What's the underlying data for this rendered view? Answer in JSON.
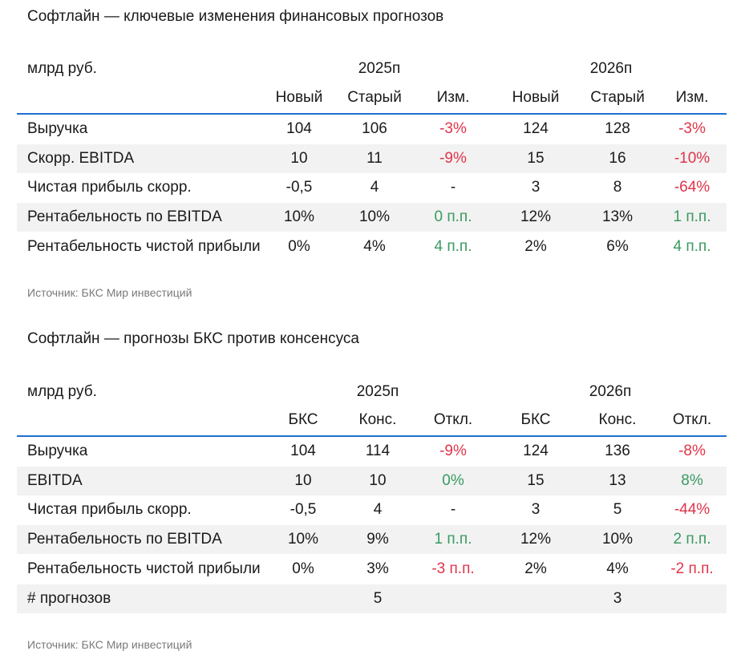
{
  "table1": {
    "title": "Софтлайн — ключевые изменения финансовых прогнозов",
    "unit": "млрд руб.",
    "years": [
      "2025п",
      "2026п"
    ],
    "headers": [
      "Новый",
      "Старый",
      "Изм.",
      "Новый",
      "Старый",
      "Изм."
    ],
    "rows": [
      {
        "label": "Выручка",
        "v": [
          "104",
          "106",
          "-3%",
          "124",
          "128",
          "-3%"
        ],
        "c": [
          "neu",
          "neu",
          "neg",
          "neu",
          "neu",
          "neg"
        ]
      },
      {
        "label": "Скорр. EBITDA",
        "v": [
          "10",
          "11",
          "-9%",
          "15",
          "16",
          "-10%"
        ],
        "c": [
          "neu",
          "neu",
          "neg",
          "neu",
          "neu",
          "neg"
        ]
      },
      {
        "label": "Чистая прибыль скорр.",
        "v": [
          "-0,5",
          "4",
          "-",
          "3",
          "8",
          "-64%"
        ],
        "c": [
          "neu",
          "neu",
          "neu",
          "neu",
          "neu",
          "neg"
        ]
      },
      {
        "label": "Рентабельность по EBITDA",
        "v": [
          "10%",
          "10%",
          "0 п.п.",
          "12%",
          "13%",
          "1 п.п."
        ],
        "c": [
          "neu",
          "neu",
          "pos",
          "neu",
          "neu",
          "pos"
        ]
      },
      {
        "label": "Рентабельность чистой прибыли",
        "v": [
          "0%",
          "4%",
          "4 п.п.",
          "2%",
          "6%",
          "4 п.п."
        ],
        "c": [
          "neu",
          "neu",
          "pos",
          "neu",
          "neu",
          "pos"
        ]
      }
    ],
    "source": "Источник: БКС Мир инвестиций"
  },
  "table2": {
    "title": "Софтлайн — прогнозы БКС против консенсуса",
    "unit": "млрд руб.",
    "years": [
      "2025п",
      "2026п"
    ],
    "headers": [
      "БКС",
      "Конс.",
      "Откл.",
      "БКС",
      "Конс.",
      "Откл."
    ],
    "rows": [
      {
        "label": "Выручка",
        "v": [
          "104",
          "114",
          "-9%",
          "124",
          "136",
          "-8%"
        ],
        "c": [
          "neu",
          "neu",
          "neg",
          "neu",
          "neu",
          "neg"
        ]
      },
      {
        "label": "EBITDA",
        "v": [
          "10",
          "10",
          "0%",
          "15",
          "13",
          "8%"
        ],
        "c": [
          "neu",
          "neu",
          "pos",
          "neu",
          "neu",
          "pos"
        ]
      },
      {
        "label": "Чистая прибыль скорр.",
        "v": [
          "-0,5",
          "4",
          "-",
          "3",
          "5",
          "-44%"
        ],
        "c": [
          "neu",
          "neu",
          "neu",
          "neu",
          "neu",
          "neg"
        ]
      },
      {
        "label": "Рентабельность по EBITDA",
        "v": [
          "10%",
          "9%",
          "1 п.п.",
          "12%",
          "10%",
          "2 п.п."
        ],
        "c": [
          "neu",
          "neu",
          "pos",
          "neu",
          "neu",
          "pos"
        ]
      },
      {
        "label": "Рентабельность чистой прибыли",
        "v": [
          "0%",
          "3%",
          "-3 п.п.",
          "2%",
          "4%",
          "-2 п.п."
        ],
        "c": [
          "neu",
          "neu",
          "neg",
          "neu",
          "neu",
          "neg"
        ]
      },
      {
        "label": "# прогнозов",
        "v": [
          "",
          "5",
          "",
          "",
          "3",
          ""
        ],
        "c": [
          "neu",
          "neu",
          "neu",
          "neu",
          "neu",
          "neu"
        ]
      }
    ],
    "source": "Источник: БКС Мир инвестиций"
  }
}
